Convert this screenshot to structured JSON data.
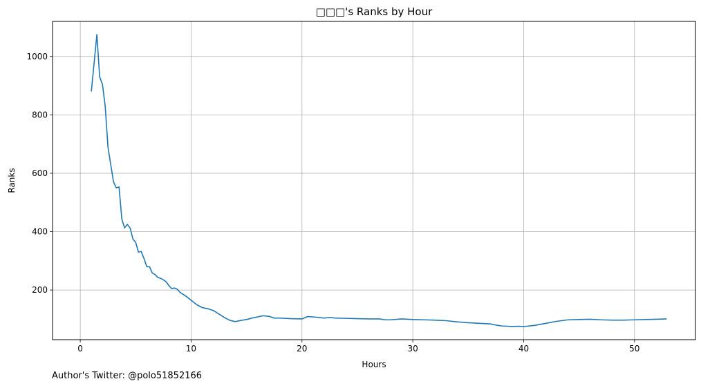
{
  "chart_data": {
    "type": "line",
    "title": "□□□'s Ranks by Hour",
    "xlabel": "Hours",
    "ylabel": "Ranks",
    "xlim": [
      -2.5,
      55.5
    ],
    "ylim": [
      30,
      1120
    ],
    "xticks": [
      0,
      10,
      20,
      30,
      40,
      50
    ],
    "yticks": [
      200,
      400,
      600,
      800,
      1000
    ],
    "grid": true,
    "color": "#1f77b4",
    "series": [
      {
        "x": [
          1.0,
          1.5,
          1.75,
          2.0,
          2.25,
          2.5,
          2.75,
          3.0,
          3.25,
          3.5,
          3.75,
          4.0,
          4.25,
          4.5,
          4.75,
          5.0,
          5.25,
          5.5,
          5.75,
          6.0,
          6.25,
          6.5,
          6.75,
          7.0,
          7.25,
          7.5,
          7.75,
          8.0,
          8.25,
          8.5,
          8.75,
          9.0,
          9.5,
          10.0,
          10.5,
          11.0,
          11.5,
          12.0,
          12.5,
          13.0,
          13.5,
          14.0,
          14.5,
          15.0,
          15.5,
          16.0,
          16.5,
          17.0,
          17.5,
          18.0,
          19.0,
          20.0,
          20.5,
          21.0,
          22.0,
          22.5,
          23.0,
          24.0,
          25.0,
          26.0,
          27.0,
          27.5,
          28.0,
          29.0,
          30.0,
          31.0,
          32.0,
          33.0,
          34.0,
          35.0,
          36.0,
          37.0,
          37.5,
          38.0,
          39.0,
          39.5,
          40.0,
          41.0,
          42.0,
          43.0,
          44.0,
          45.0,
          46.0,
          47.0,
          48.0,
          49.0,
          50.0,
          51.0,
          52.0,
          52.9
        ],
        "y": [
          880,
          1075,
          930,
          905,
          830,
          690,
          630,
          570,
          550,
          553,
          443,
          413,
          425,
          412,
          375,
          363,
          330,
          332,
          308,
          280,
          280,
          258,
          253,
          243,
          240,
          235,
          228,
          215,
          205,
          207,
          203,
          192,
          180,
          165,
          150,
          140,
          136,
          130,
          118,
          106,
          96,
          92,
          96,
          99,
          104,
          108,
          112,
          110,
          104,
          104,
          102,
          101,
          109,
          108,
          104,
          106,
          104,
          103,
          102,
          101,
          101,
          98,
          98,
          101,
          99,
          98,
          97,
          95,
          91,
          88,
          86,
          84,
          80,
          77,
          75,
          76,
          75,
          79,
          86,
          93,
          98,
          99,
          100,
          98,
          97,
          97,
          98,
          99,
          100,
          101
        ]
      }
    ]
  },
  "footer_text": "Author's Twitter: @polo51852166"
}
